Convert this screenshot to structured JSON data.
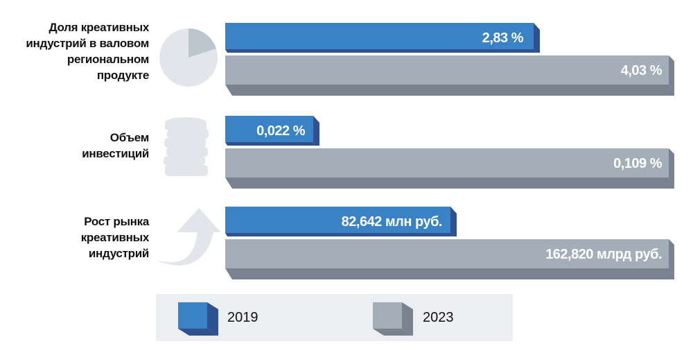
{
  "chart_data": {
    "type": "bar",
    "orientation": "horizontal",
    "categories": [
      "Доля креативных индустрий в валовом региональном продукте",
      "Объем инвестиций",
      "Рост рынка креативных индустрий"
    ],
    "category_lines": [
      [
        "Доля креативных",
        "индустрий в валовом",
        "региональном",
        "продукте"
      ],
      [
        "Объем",
        "инвестиций"
      ],
      [
        "Рост рынка",
        "креативных",
        "индустрий"
      ]
    ],
    "series": [
      {
        "name": "2019",
        "color": "#3a82c6",
        "values": [
          2.83,
          0.022,
          82.642
        ],
        "labels": [
          "2,83 %",
          "0,022 %",
          "82,642 млн руб."
        ]
      },
      {
        "name": "2023",
        "color": "#a3aeb9",
        "values": [
          4.03,
          0.109,
          162.82
        ],
        "labels": [
          "4,03 %",
          "0,109 %",
          "162,820 млрд руб."
        ]
      }
    ],
    "legend": [
      "2019",
      "2023"
    ],
    "legend_position": "bottom"
  },
  "colors": {
    "blue": "#3a82c6",
    "blue_dark": "#2f5190",
    "gray": "#a3aeb9",
    "gray_dark": "#78838f",
    "icon": "#e2e6eb",
    "icon_dark": "#bcc6cf"
  }
}
